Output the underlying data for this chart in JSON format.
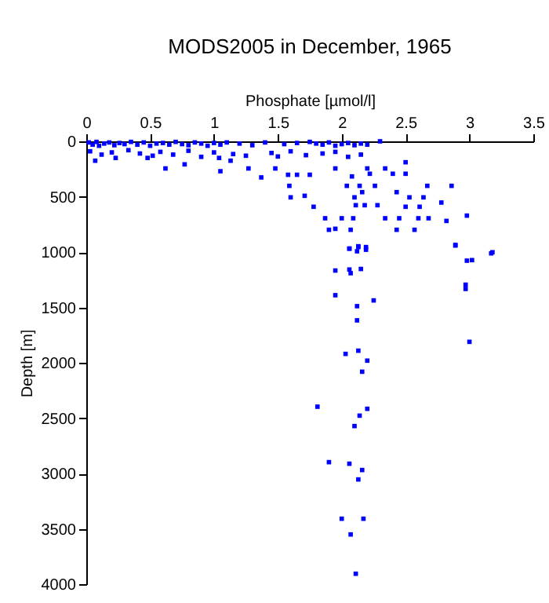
{
  "chart_data": {
    "type": "scatter",
    "title": "MODS2005 in December, 1965",
    "xlabel": "Phosphate [µmol/l]",
    "ylabel": "Depth [m]",
    "xlim": [
      0,
      3.5
    ],
    "xticks": [
      0,
      0.5,
      1,
      1.5,
      2,
      2.5,
      3,
      3.5
    ],
    "ylim": [
      4000,
      0
    ],
    "yticks": [
      0,
      500,
      1000,
      1500,
      2000,
      2500,
      3000,
      3500,
      4000
    ],
    "grid": false,
    "marker": "square",
    "series": [
      {
        "color": "#0000ff",
        "x": [
          0.02,
          0.05,
          0.08,
          0.1,
          0.14,
          0.18,
          0.22,
          0.26,
          0.3,
          0.35,
          0.4,
          0.45,
          0.5,
          0.55,
          0.6,
          0.65,
          0.7,
          0.75,
          0.8,
          0.85,
          0.9,
          0.95,
          1.0,
          1.05,
          1.1,
          1.2,
          1.3,
          1.4,
          1.55,
          1.65,
          1.75,
          1.8,
          1.85,
          1.9,
          1.95,
          2.0,
          2.05,
          2.1,
          2.15,
          2.2,
          0.03,
          0.12,
          0.2,
          0.33,
          0.42,
          0.52,
          0.58,
          0.68,
          0.8,
          0.9,
          1.0,
          1.15,
          1.25,
          1.45,
          1.6,
          1.72,
          1.85,
          1.95,
          2.05,
          2.15,
          0.07,
          0.23,
          0.48,
          0.62,
          0.77,
          1.05,
          1.04,
          1.13,
          1.27,
          1.37,
          1.48,
          1.5,
          1.58,
          1.59,
          1.6,
          1.65,
          1.71,
          1.75,
          1.78,
          1.87,
          1.9,
          1.95,
          1.95,
          2.0,
          2.04,
          2.06,
          2.07,
          2.08,
          2.09,
          2.1,
          2.11,
          2.13,
          2.14,
          2.16,
          2.18,
          2.19,
          2.2,
          2.22,
          2.26,
          2.28,
          2.3,
          2.34,
          2.34,
          2.4,
          2.43,
          2.43,
          2.45,
          2.5,
          2.5,
          2.5,
          2.53,
          2.57,
          2.6,
          2.61,
          2.64,
          2.67,
          2.68,
          2.78,
          2.82,
          2.86,
          2.89,
          2.98,
          3.02,
          3.18,
          2.06,
          2.13,
          2.19,
          2.12,
          1.95,
          2.06,
          2.15,
          2.07,
          1.95,
          2.25,
          2.12,
          2.12,
          2.89,
          3.17,
          2.98,
          2.97,
          2.97,
          3.0,
          2.03,
          2.13,
          2.2,
          2.16,
          1.81,
          2.2,
          2.14,
          2.1,
          1.9,
          2.06,
          2.16,
          2.13,
          2.0,
          2.17,
          2.07,
          2.11
        ],
        "values": [
          10,
          30,
          5,
          40,
          20,
          10,
          35,
          15,
          25,
          5,
          30,
          10,
          40,
          20,
          15,
          30,
          5,
          25,
          35,
          10,
          20,
          40,
          15,
          30,
          10,
          20,
          35,
          10,
          25,
          15,
          5,
          20,
          30,
          10,
          40,
          25,
          15,
          35,
          20,
          30,
          90,
          120,
          100,
          80,
          110,
          130,
          95,
          120,
          85,
          140,
          100,
          115,
          130,
          105,
          90,
          125,
          110,
          95,
          140,
          120,
          175,
          150,
          150,
          245,
          208,
          270,
          150,
          175,
          245,
          326,
          245,
          137,
          302,
          402,
          506,
          302,
          492,
          302,
          591,
          695,
          799,
          245,
          790,
          695,
          402,
          969,
          799,
          317,
          695,
          506,
          577,
          955,
          402,
          459,
          577,
          979,
          245,
          293,
          402,
          577,
          0,
          245,
          695,
          293,
          459,
          799,
          695,
          189,
          293,
          591,
          506,
          799,
          695,
          591,
          506,
          402,
          695,
          553,
          719,
          402,
          941,
          671,
          1073,
          1002,
          969,
          948,
          955,
          993,
          1167,
          1158,
          1153,
          1191,
          1390,
          1437,
          1489,
          1617,
          936,
          1012,
          1078,
          1295,
          1333,
          1811,
          1920,
          1891,
          1981,
          2081,
          2397,
          2416,
          2478,
          2572,
          2898,
          2912,
          2969,
          3054,
          3409,
          3409,
          3551,
          3906
        ]
      }
    ]
  }
}
